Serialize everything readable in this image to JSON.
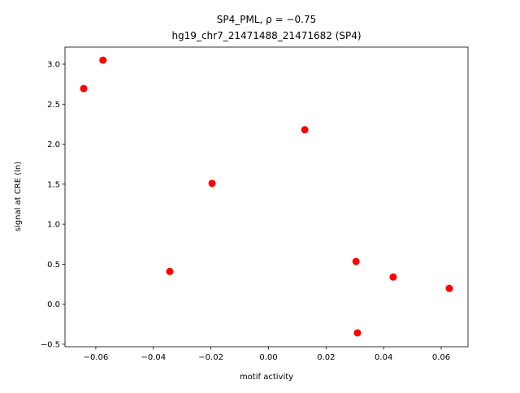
{
  "chart_data": {
    "type": "scatter",
    "title": "SP4_PML, ρ = −0.75",
    "subtitle": "hg19_chr7_21471488_21471682 (SP4)",
    "x_label": "motif activity",
    "y_label": "signal at CRE (ln)",
    "color": "#ff0000",
    "x": [
      -0.0642,
      -0.0575,
      -0.0343,
      -0.0196,
      0.0126,
      0.0304,
      0.0309,
      0.0433,
      0.0628
    ],
    "values": [
      2.695,
      3.05,
      0.41,
      1.51,
      2.18,
      0.535,
      -0.358,
      0.34,
      0.198
    ],
    "xlim": [
      -0.0707,
      0.0693
    ],
    "ylim": [
      -0.531,
      3.213
    ],
    "xticks": [
      {
        "value": -0.06,
        "label": "−0.06"
      },
      {
        "value": -0.04,
        "label": "−0.04"
      },
      {
        "value": -0.02,
        "label": "−0.02"
      },
      {
        "value": 0,
        "label": "0.00"
      },
      {
        "value": 0.02,
        "label": "0.02"
      },
      {
        "value": 0.04,
        "label": "0.04"
      },
      {
        "value": 0.06,
        "label": "0.06"
      }
    ],
    "yticks": [
      {
        "value": -0.5,
        "label": "−0.5"
      },
      {
        "value": 0,
        "label": "0.0"
      },
      {
        "value": 0.5,
        "label": "0.5"
      },
      {
        "value": 1,
        "label": "1.0"
      },
      {
        "value": 1.5,
        "label": "1.5"
      },
      {
        "value": 2,
        "label": "2.0"
      },
      {
        "value": 2.5,
        "label": "2.5"
      },
      {
        "value": 3,
        "label": "3.0"
      }
    ]
  }
}
